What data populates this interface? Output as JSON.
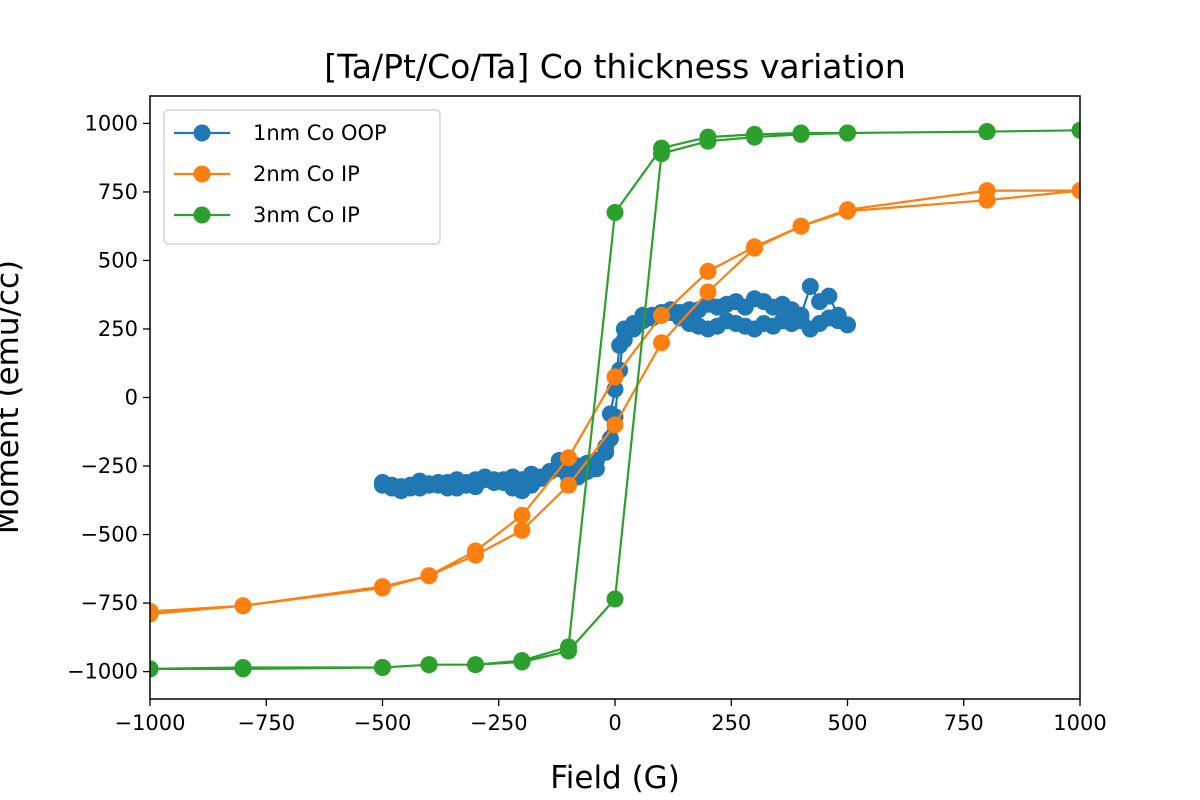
{
  "chart_data": {
    "type": "line",
    "title": "[Ta/Pt/Co/Ta] Co thickness variation",
    "xlabel": "Field (G)",
    "ylabel": "Moment (emu/cc)",
    "xlim": [
      -1000,
      1000
    ],
    "ylim": [
      -1100,
      1100
    ],
    "xticks": [
      -1000,
      -750,
      -500,
      -250,
      0,
      250,
      500,
      750,
      1000
    ],
    "xtick_labels": [
      "−1000",
      "−750",
      "−500",
      "−250",
      "0",
      "250",
      "500",
      "750",
      "1000"
    ],
    "yticks": [
      -1000,
      -750,
      -500,
      -250,
      0,
      250,
      500,
      750,
      1000
    ],
    "ytick_labels": [
      "−1000",
      "−750",
      "−500",
      "−250",
      "0",
      "250",
      "500",
      "750",
      "1000"
    ],
    "grid": false,
    "legend_position": "top-left",
    "series": [
      {
        "name": "1nm Co OOP",
        "color": "#1f77b4",
        "x": [
          -500,
          -480,
          -460,
          -440,
          -420,
          -400,
          -380,
          -360,
          -340,
          -320,
          -300,
          -280,
          -260,
          -240,
          -220,
          -200,
          -180,
          -160,
          -140,
          -120,
          -100,
          -80,
          -60,
          -40,
          -20,
          -10,
          0,
          10,
          20,
          40,
          60,
          80,
          100,
          120,
          140,
          160,
          180,
          200,
          220,
          240,
          260,
          280,
          300,
          320,
          340,
          360,
          380,
          400,
          420,
          440,
          460,
          480,
          500,
          480,
          460,
          440,
          420,
          400,
          380,
          360,
          340,
          320,
          300,
          280,
          260,
          240,
          220,
          200,
          180,
          160,
          140,
          120,
          100,
          80,
          60,
          40,
          20,
          10,
          0,
          -10,
          -20,
          -40,
          -60,
          -80,
          -100,
          -120,
          -140,
          -160,
          -180,
          -200,
          -220,
          -240,
          -260,
          -280,
          -300,
          -320,
          -340,
          -360,
          -380,
          -400,
          -420,
          -440,
          -460,
          -480,
          -500
        ],
        "y": [
          -310,
          -320,
          -325,
          -330,
          -305,
          -320,
          -310,
          -330,
          -300,
          -320,
          -325,
          -300,
          -310,
          -300,
          -290,
          -300,
          -280,
          -295,
          -270,
          -260,
          -270,
          -250,
          -240,
          -230,
          -200,
          -150,
          -70,
          100,
          250,
          270,
          280,
          290,
          300,
          310,
          290,
          270,
          260,
          250,
          260,
          280,
          270,
          260,
          250,
          270,
          260,
          280,
          270,
          280,
          250,
          270,
          290,
          280,
          265,
          300,
          370,
          350,
          405,
          300,
          320,
          340,
          330,
          350,
          360,
          330,
          350,
          340,
          330,
          340,
          320,
          320,
          310,
          320,
          310,
          300,
          300,
          250,
          210,
          190,
          30,
          -60,
          -180,
          -260,
          -270,
          -290,
          -290,
          -230,
          -270,
          -290,
          -320,
          -340,
          -330,
          -310,
          -300,
          -290,
          -300,
          -310,
          -330,
          -310,
          -320,
          -315,
          -330,
          -320,
          -340,
          -330,
          -320
        ]
      },
      {
        "name": "2nm Co IP",
        "color": "#ff7f0e",
        "x": [
          -1000,
          -800,
          -500,
          -400,
          -300,
          -200,
          -100,
          0,
          100,
          200,
          300,
          400,
          500,
          800,
          1000,
          800,
          500,
          400,
          300,
          200,
          100,
          0,
          -100,
          -200,
          -300,
          -400,
          -500,
          -800,
          -1000
        ],
        "y": [
          -790,
          -760,
          -695,
          -650,
          -575,
          -485,
          -320,
          -100,
          200,
          385,
          545,
          625,
          680,
          720,
          755,
          755,
          685,
          625,
          550,
          460,
          300,
          75,
          -220,
          -430,
          -560,
          -650,
          -690,
          -760,
          -780
        ]
      },
      {
        "name": "3nm Co IP",
        "color": "#2ca02c",
        "x": [
          -1000,
          -800,
          -500,
          -400,
          -300,
          -200,
          -100,
          0,
          100,
          200,
          300,
          400,
          500,
          800,
          1000,
          800,
          500,
          400,
          300,
          200,
          100,
          0,
          -100,
          -200,
          -300,
          -400,
          -500,
          -800,
          -1000
        ],
        "y": [
          -990,
          -985,
          -985,
          -975,
          -975,
          -965,
          -925,
          -735,
          890,
          935,
          950,
          960,
          965,
          970,
          975,
          970,
          965,
          965,
          960,
          950,
          910,
          675,
          -910,
          -960,
          -975,
          -975,
          -985,
          -990,
          -990
        ]
      }
    ]
  }
}
